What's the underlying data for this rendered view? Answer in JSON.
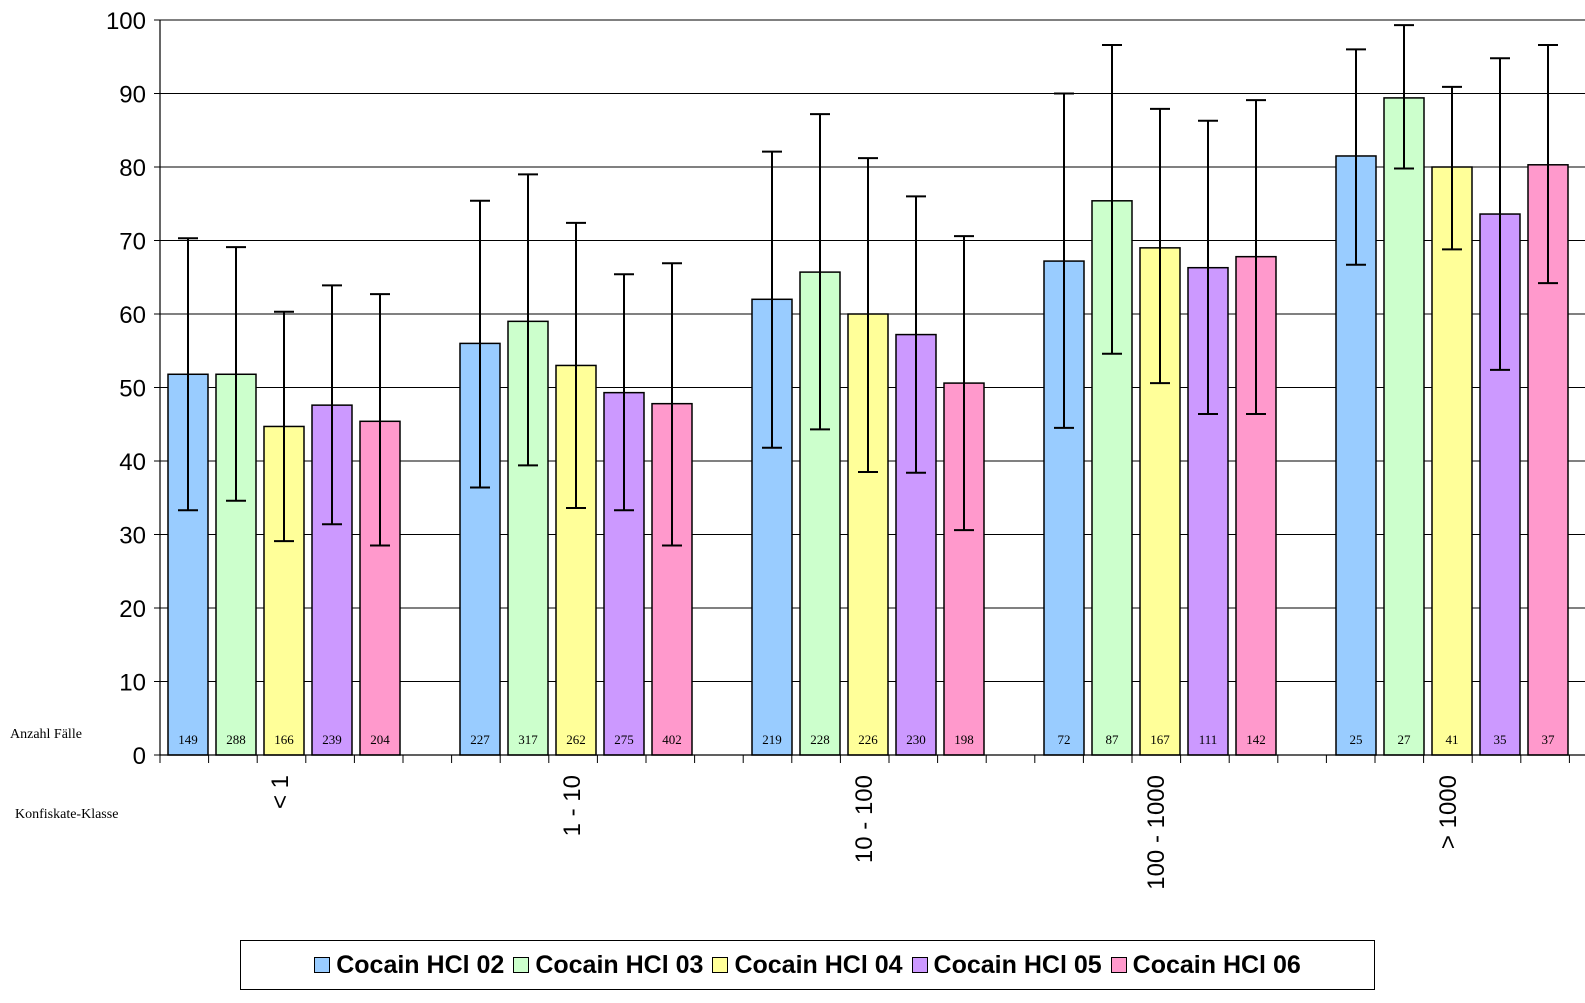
{
  "chart_data": {
    "type": "bar",
    "title": "",
    "xlabel": "Konfiskate-Klasse",
    "ylabel": "",
    "count_row_label": "Anzahl Fälle",
    "ylim": [
      0,
      100
    ],
    "yticks": [
      0,
      10,
      20,
      30,
      40,
      50,
      60,
      70,
      80,
      90,
      100
    ],
    "grid": true,
    "legend_position": "bottom",
    "categories": [
      "< 1",
      "1 - 10",
      "10 - 100",
      "100 - 1000",
      "> 1000"
    ],
    "series": [
      {
        "name": "Cocain HCl 02",
        "color": "#99ccff",
        "values": [
          51.8,
          56.0,
          62.0,
          67.2,
          81.5
        ],
        "err_low": [
          33.3,
          36.4,
          41.8,
          44.5,
          66.7
        ],
        "err_high": [
          70.3,
          75.4,
          82.1,
          90.0,
          96.0
        ],
        "n": [
          149,
          227,
          219,
          72,
          25
        ]
      },
      {
        "name": "Cocain HCl 03",
        "color": "#ccffcc",
        "values": [
          51.8,
          59.0,
          65.7,
          75.4,
          89.4
        ],
        "err_low": [
          34.6,
          39.4,
          44.3,
          54.6,
          79.8
        ],
        "err_high": [
          69.1,
          79.0,
          87.2,
          96.6,
          99.3
        ],
        "n": [
          288,
          317,
          228,
          87,
          27
        ]
      },
      {
        "name": "Cocain HCl 04",
        "color": "#ffff99",
        "values": [
          44.7,
          53.0,
          60.0,
          69.0,
          80.0
        ],
        "err_low": [
          29.1,
          33.6,
          38.5,
          50.6,
          68.8
        ],
        "err_high": [
          60.3,
          72.4,
          81.2,
          87.9,
          90.9
        ],
        "n": [
          166,
          262,
          226,
          167,
          41
        ]
      },
      {
        "name": "Cocain HCl 05",
        "color": "#cc99ff",
        "values": [
          47.6,
          49.3,
          57.2,
          66.3,
          73.6
        ],
        "err_low": [
          31.4,
          33.3,
          38.4,
          46.4,
          52.4
        ],
        "err_high": [
          63.9,
          65.4,
          76.0,
          86.3,
          94.8
        ],
        "n": [
          239,
          275,
          230,
          111,
          35
        ]
      },
      {
        "name": "Cocain HCl 06",
        "color": "#ff99cc",
        "values": [
          45.4,
          47.8,
          50.6,
          67.8,
          80.3
        ],
        "err_low": [
          28.5,
          28.5,
          30.6,
          46.4,
          64.2
        ],
        "err_high": [
          62.7,
          66.9,
          70.6,
          89.1,
          96.6
        ],
        "n": [
          204,
          402,
          198,
          142,
          37
        ]
      }
    ]
  }
}
